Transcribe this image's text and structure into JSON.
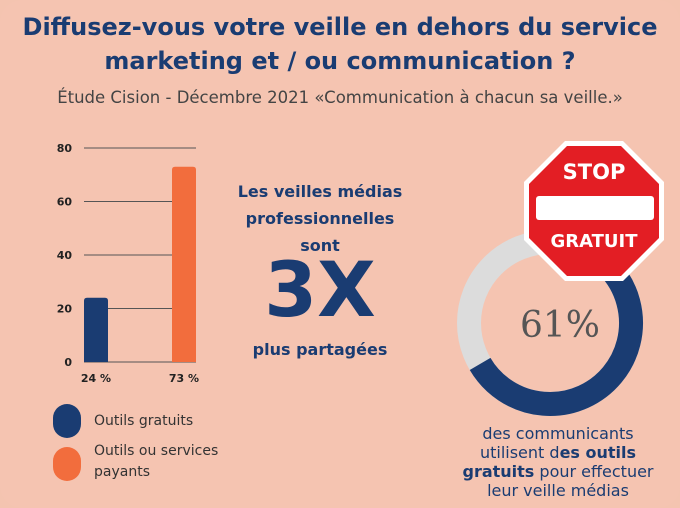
{
  "title_line1": "Diffusez-vous votre veille en dehors du service",
  "title_line2": "marketing et / ou communication ?",
  "subtitle": "Étude Cision - Décembre 2021 «Communication à chacun sa veille.»",
  "colors": {
    "background": "#f5c4b1",
    "navy": "#1a3c72",
    "orange": "#f26d3d",
    "grey_track": "#dcdcdc",
    "stop_red": "#e31e24"
  },
  "chart_data": {
    "type": "bar",
    "categories": [
      "24 %",
      "73 %"
    ],
    "values": [
      24,
      73
    ],
    "series_colors": [
      "#1a3c72",
      "#f26d3d"
    ],
    "yticks": [
      "0",
      "20",
      "40",
      "60",
      "80"
    ],
    "ylim": [
      0,
      80
    ],
    "grid": true
  },
  "legend": [
    {
      "label": "Outils gratuits",
      "color": "#1a3c72"
    },
    {
      "label_line1": "Outils ou services",
      "label_line2": "payants",
      "color": "#f26d3d"
    }
  ],
  "middle": {
    "line1": "Les veilles médias",
    "line2": "professionnelles",
    "line3": "sont",
    "big": "3X",
    "bottom": "plus partagées"
  },
  "donut": {
    "value": 61,
    "label": "61%",
    "caption_line1": "des communicants",
    "caption_line2a": "utilisent d",
    "caption_line2b": "es outils",
    "caption_line3a": "gratuits",
    "caption_line3b": " pour effectuer",
    "caption_line4": "leur veille médias"
  },
  "stop_sign": {
    "top": "STOP",
    "bottom": "GRATUIT"
  }
}
